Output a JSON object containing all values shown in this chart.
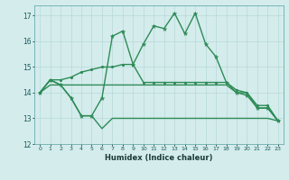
{
  "xlabel": "Humidex (Indice chaleur)",
  "x": [
    0,
    1,
    2,
    3,
    4,
    5,
    6,
    7,
    8,
    9,
    10,
    11,
    12,
    13,
    14,
    15,
    16,
    17,
    18,
    19,
    20,
    21,
    22,
    23
  ],
  "line1_zigzag": [
    14.0,
    14.5,
    14.3,
    13.8,
    13.1,
    13.1,
    13.8,
    16.2,
    16.4,
    15.1,
    15.9,
    16.6,
    16.5,
    17.1,
    16.3,
    17.1,
    15.9,
    15.4,
    14.4,
    14.0,
    13.9,
    13.4,
    13.4,
    12.9
  ],
  "line2_rising": [
    14.0,
    14.5,
    14.5,
    14.6,
    14.8,
    14.9,
    15.0,
    15.0,
    15.1,
    15.1,
    14.4,
    14.4,
    14.4,
    14.4,
    14.4,
    14.4,
    14.4,
    14.4,
    14.4,
    14.1,
    14.0,
    13.5,
    13.5,
    12.9
  ],
  "line3_flat": [
    14.0,
    14.3,
    14.3,
    14.3,
    14.3,
    14.3,
    14.3,
    14.3,
    14.3,
    14.3,
    14.3,
    14.3,
    14.3,
    14.3,
    14.3,
    14.3,
    14.3,
    14.3,
    14.3,
    14.0,
    14.0,
    13.4,
    13.4,
    12.9
  ],
  "line4_low": [
    14.0,
    14.5,
    14.3,
    13.8,
    13.1,
    13.1,
    12.6,
    13.0,
    13.0,
    13.0,
    13.0,
    13.0,
    13.0,
    13.0,
    13.0,
    13.0,
    13.0,
    13.0,
    13.0,
    13.0,
    13.0,
    13.0,
    13.0,
    12.9
  ],
  "line_color": "#2E8B57",
  "bg_color": "#d4ecec",
  "grid_color": "#b8d8d8",
  "ylim": [
    12,
    17.4
  ],
  "xlim": [
    -0.5,
    23.5
  ]
}
